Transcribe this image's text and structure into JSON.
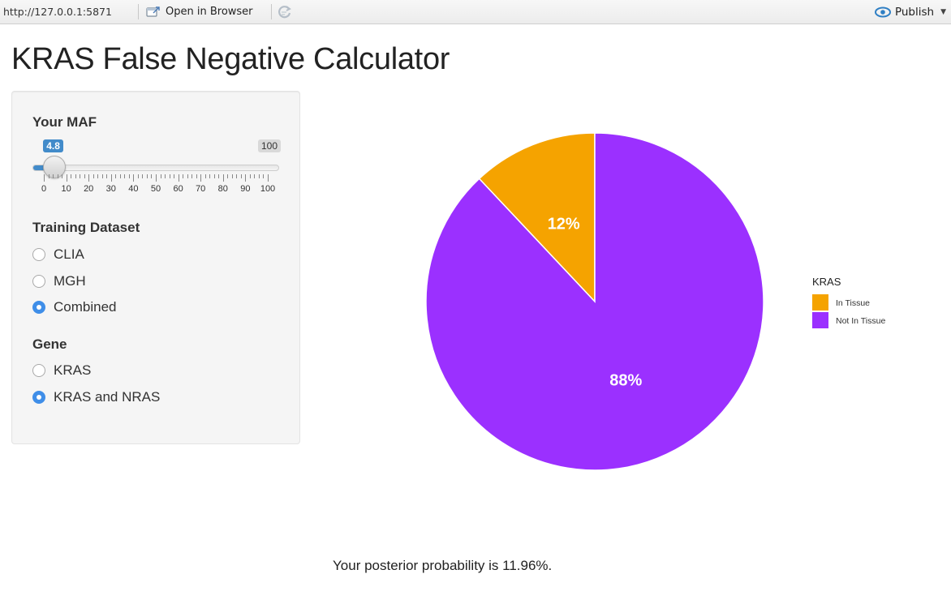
{
  "toolbar": {
    "url": "http://127.0.0.1:5871",
    "open_in_browser": "Open in Browser",
    "publish": "Publish"
  },
  "page": {
    "title": "KRAS False Negative Calculator",
    "posterior_text": "Your posterior probability is 11.96%."
  },
  "sidebar": {
    "maf": {
      "label": "Your MAF",
      "value": 4.8,
      "value_label": "4.8",
      "min": 0,
      "max": 100,
      "max_label": "100",
      "ticks": [
        "0",
        "10",
        "20",
        "30",
        "40",
        "50",
        "60",
        "70",
        "80",
        "90",
        "100"
      ]
    },
    "training_dataset": {
      "label": "Training Dataset",
      "options": [
        "CLIA",
        "MGH",
        "Combined"
      ],
      "selected": "Combined"
    },
    "gene": {
      "label": "Gene",
      "options": [
        "KRAS",
        "KRAS and NRAS"
      ],
      "selected": "KRAS and NRAS"
    }
  },
  "chart_data": {
    "type": "pie",
    "legend_title": "KRAS",
    "legend_position": "right",
    "slices": [
      {
        "name": "In Tissue",
        "value": 12,
        "label": "12%",
        "color": "#f5a300"
      },
      {
        "name": "Not In Tissue",
        "value": 88,
        "label": "88%",
        "color": "#9b30ff"
      }
    ]
  }
}
